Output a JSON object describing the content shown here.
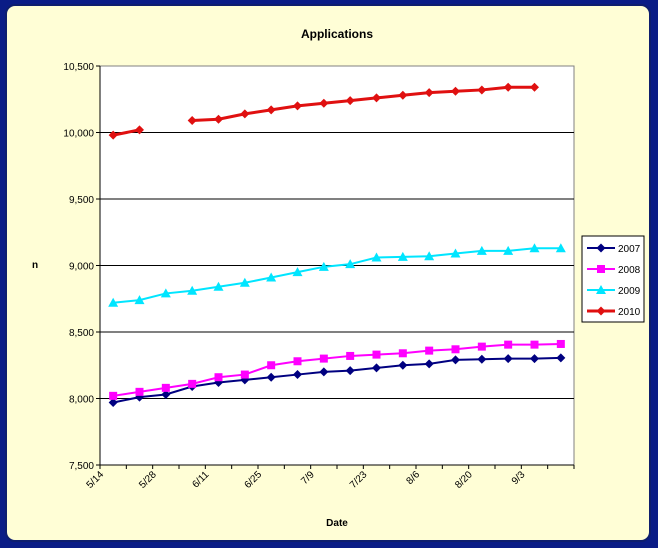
{
  "chart_data": {
    "type": "line",
    "title": "Applications",
    "xlabel": "Date",
    "ylabel": "n",
    "ylim": [
      7500,
      10500
    ],
    "y_ticks": [
      7500,
      8000,
      8500,
      9000,
      9500,
      10000,
      10500
    ],
    "y_tick_labels": [
      "7,500",
      "8,000",
      "8,500",
      "9,000",
      "9,500",
      "10,000",
      "10,500"
    ],
    "x_tick_labels": [
      "5/14",
      "5/28",
      "6/11",
      "6/25",
      "7/9",
      "7/23",
      "8/6",
      "8/20",
      "9/3"
    ],
    "grid": "horizontal",
    "legend": "right",
    "series": [
      {
        "name": "2007",
        "color": "#000080",
        "marker": "diamond",
        "values": [
          7970,
          8010,
          8030,
          8090,
          8120,
          8140,
          8160,
          8180,
          8200,
          8210,
          8230,
          8250,
          8260,
          8290,
          8295,
          8300,
          8300,
          8305
        ]
      },
      {
        "name": "2008",
        "color": "#ff00ff",
        "marker": "square",
        "values": [
          8020,
          8050,
          8080,
          8110,
          8160,
          8180,
          8250,
          8280,
          8300,
          8320,
          8330,
          8340,
          8360,
          8370,
          8390,
          8405,
          8405,
          8410
        ]
      },
      {
        "name": "2009",
        "color": "#00e5ff",
        "marker": "triangle",
        "values": [
          8720,
          8740,
          8790,
          8810,
          8840,
          8870,
          8910,
          8950,
          8990,
          9010,
          9060,
          9065,
          9070,
          9090,
          9110,
          9110,
          9130,
          9130
        ]
      },
      {
        "name": "2010",
        "color": "#e01010",
        "marker": "diamond",
        "values": [
          9980,
          10020,
          null,
          10090,
          10100,
          10140,
          10170,
          10200,
          10220,
          10240,
          10260,
          10280,
          10300,
          10310,
          10320,
          10340,
          10340,
          null
        ]
      }
    ]
  }
}
